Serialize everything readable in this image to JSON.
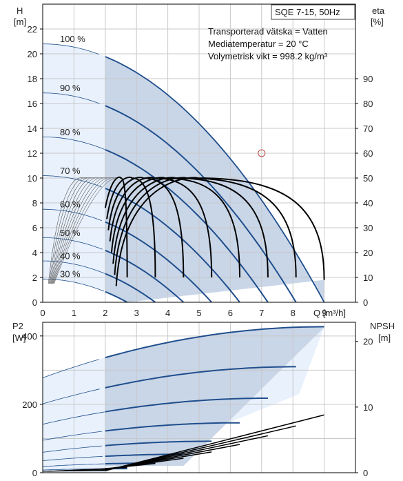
{
  "chart_data": {
    "type": "line",
    "pump_label": "SQE 7-15, 50Hz",
    "info_lines": [
      "Transporterad vätska = Vatten",
      "Mediatemperatur = 20 °C",
      "Volymetrisk vikt = 998.2 kg/m³"
    ],
    "colors": {
      "curve": "#1f4e8c",
      "eta": "#000000",
      "fill_dark": "#c9d6e8",
      "fill_light": "#e8f1fc",
      "grid": "#c8c8c8",
      "thin_curve": "#555555",
      "marker": "#c04040"
    },
    "top": {
      "ylabel_left": [
        "H",
        "[m]"
      ],
      "ylabel_right": [
        "eta",
        "[%]"
      ],
      "xlabel": "Q [m³/h]",
      "xlim": [
        0,
        10
      ],
      "ylim": [
        0,
        24
      ],
      "x_ticks": [
        0,
        1,
        2,
        3,
        4,
        5,
        6,
        7,
        8,
        9
      ],
      "y_ticks": [
        0,
        2,
        4,
        6,
        8,
        10,
        12,
        14,
        16,
        18,
        20,
        22
      ],
      "eta_ticks": [
        0,
        10,
        20,
        30,
        40,
        50,
        60,
        70,
        80,
        90
      ],
      "operating_point": {
        "q": 7.0,
        "h": 12.0
      },
      "speed_curves": [
        {
          "label": "100 %",
          "frac": 1.0
        },
        {
          "label": "90 %",
          "frac": 0.9
        },
        {
          "label": "80 %",
          "frac": 0.8
        },
        {
          "label": "70 %",
          "frac": 0.7
        },
        {
          "label": "60 %",
          "frac": 0.6
        },
        {
          "label": "50 %",
          "frac": 0.5
        },
        {
          "label": "40 %",
          "frac": 0.4
        },
        {
          "label": "30 %",
          "frac": 0.3
        }
      ]
    },
    "bottom": {
      "ylabel_left": [
        "P2",
        "[W]"
      ],
      "ylabel_right": [
        "NPSH",
        "[m]"
      ],
      "xlim": [
        0,
        10
      ],
      "ylim": [
        0,
        440
      ],
      "y_ticks": [
        0,
        200,
        400
      ],
      "npsh_ticks": [
        0,
        10,
        20
      ],
      "power_curve_ends": [
        427,
        310,
        218,
        146,
        92,
        54,
        28,
        12
      ]
    }
  }
}
